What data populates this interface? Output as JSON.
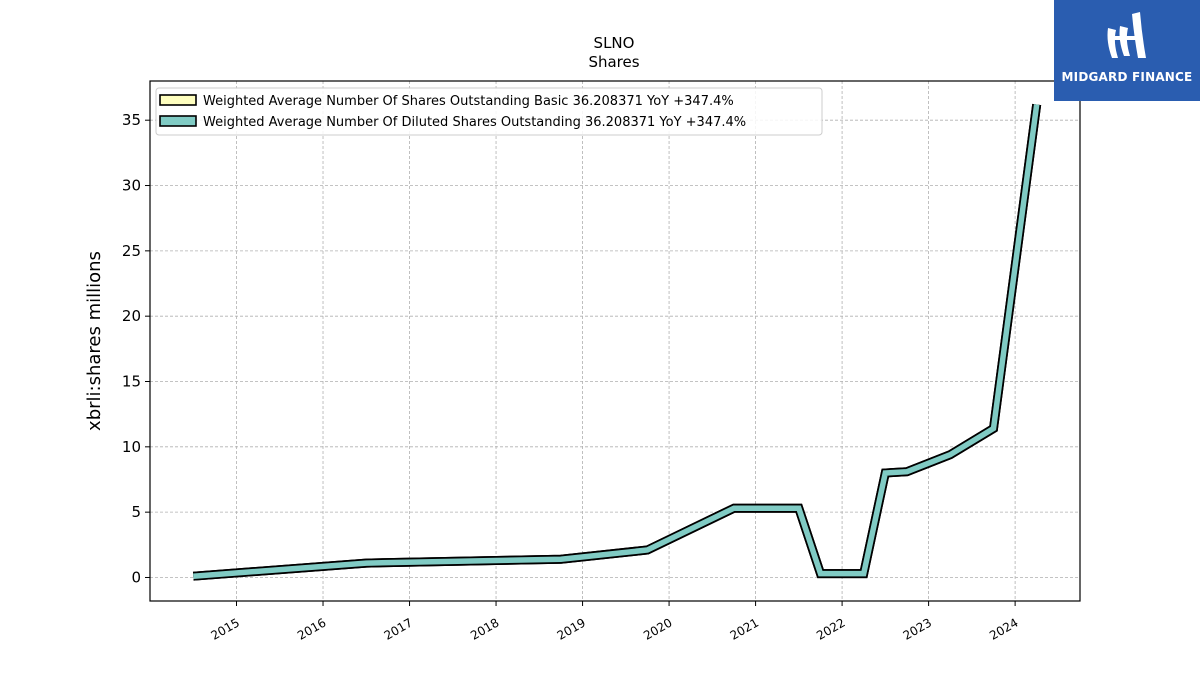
{
  "chart_data": {
    "type": "line",
    "title": "SLNO",
    "subtitle": "Shares",
    "ylabel": "xbrli:shares millions",
    "xlabel": "",
    "ylim": [
      -1.8,
      38.0
    ],
    "xlim": [
      2014.0,
      2024.75
    ],
    "yticks": [
      0,
      5,
      10,
      15,
      20,
      25,
      30,
      35
    ],
    "xticks": [
      "2015",
      "2016",
      "2017",
      "2018",
      "2019",
      "2020",
      "2021",
      "2022",
      "2023",
      "2024"
    ],
    "grid": true,
    "legend_position": "top-left",
    "series": [
      {
        "name": "Weighted Average Number Of Shares Outstanding Basic  36.208371 YoY +347.4%",
        "color": "#ffffbf",
        "x": [
          2014.5,
          2016.5,
          2018.75,
          2019.75,
          2020.75,
          2021.5,
          2021.75,
          2022.25,
          2022.5,
          2022.75,
          2023.25,
          2023.75,
          2024.25
        ],
        "y": [
          0.1,
          1.1,
          1.4,
          2.1,
          5.3,
          5.3,
          0.3,
          0.3,
          8.0,
          8.1,
          9.4,
          11.4,
          36.2
        ]
      },
      {
        "name": "Weighted Average Number Of Diluted Shares Outstanding  36.208371 YoY +347.4%",
        "color": "#80cbc4",
        "x": [
          2014.5,
          2016.5,
          2018.75,
          2019.75,
          2020.75,
          2021.5,
          2021.75,
          2022.25,
          2022.5,
          2022.75,
          2023.25,
          2023.75,
          2024.25
        ],
        "y": [
          0.1,
          1.1,
          1.4,
          2.1,
          5.3,
          5.3,
          0.3,
          0.3,
          8.0,
          8.1,
          9.4,
          11.4,
          36.2
        ]
      }
    ]
  },
  "logo": {
    "text": "MIDGARD FINANCE"
  }
}
